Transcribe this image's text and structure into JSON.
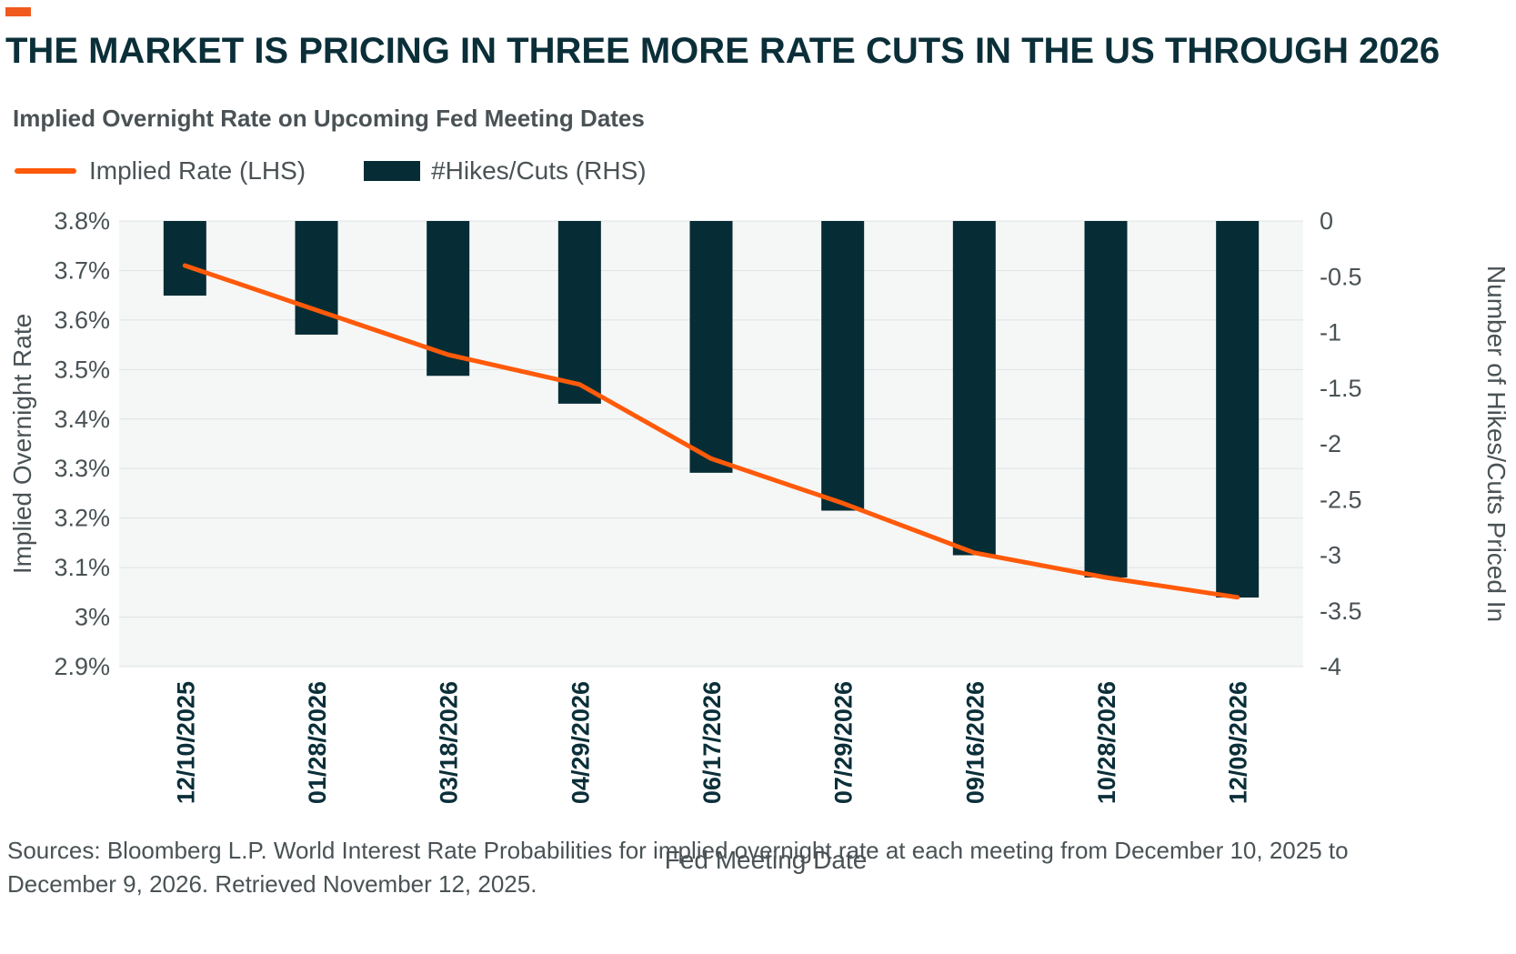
{
  "header": {
    "accent_color": "#f05a1f",
    "title": "THE MARKET IS PRICING IN THREE MORE RATE CUTS IN THE US THROUGH 2026",
    "subtitle": "Implied Overnight Rate on Upcoming Fed Meeting Dates"
  },
  "legend": {
    "line_label": "Implied Rate (LHS)",
    "bar_label": "#Hikes/Cuts (RHS)"
  },
  "chart_data": {
    "type": "bar",
    "title": "Implied Overnight Rate on Upcoming Fed Meeting Dates",
    "xlabel": "Fed Meeting Date",
    "ylabel": "Implied Overnight Rate",
    "y2label": "Number of Hikes/Cuts Priced In",
    "categories": [
      "12/10/2025",
      "01/28/2026",
      "03/18/2026",
      "04/29/2026",
      "06/17/2026",
      "07/29/2026",
      "09/16/2026",
      "10/28/2026",
      "12/09/2026"
    ],
    "ylim": [
      2.9,
      3.8
    ],
    "y_ticks": [
      "3.8%",
      "3.7%",
      "3.6%",
      "3.5%",
      "3.4%",
      "3.3%",
      "3.2%",
      "3.1%",
      "3%",
      "2.9%"
    ],
    "y_tick_values": [
      3.8,
      3.7,
      3.6,
      3.5,
      3.4,
      3.3,
      3.2,
      3.1,
      3.0,
      2.9
    ],
    "y2lim": [
      -4,
      0
    ],
    "y2_ticks": [
      "0",
      "-0.5",
      "-1",
      "-1.5",
      "-2",
      "-2.5",
      "-3",
      "-3.5",
      "-4"
    ],
    "y2_tick_values": [
      0,
      -0.5,
      -1,
      -1.5,
      -2,
      -2.5,
      -3,
      -3.5,
      -4
    ],
    "grid": true,
    "series": [
      {
        "name": "Implied Rate (LHS)",
        "type": "line",
        "axis": "left",
        "color": "#ff5a0a",
        "values": [
          3.71,
          3.62,
          3.53,
          3.47,
          3.32,
          3.23,
          3.13,
          3.08,
          3.04
        ]
      },
      {
        "name": "#Hikes/Cuts (RHS)",
        "type": "bar",
        "axis": "right",
        "color": "#062d35",
        "values": [
          -0.67,
          -1.02,
          -1.39,
          -1.64,
          -2.26,
          -2.6,
          -3.0,
          -3.2,
          -3.38
        ]
      }
    ]
  },
  "footer": {
    "source": "Sources: Bloomberg L.P. World Interest Rate Probabilities for implied overnight rate at each meeting from December 10, 2025 to December 9, 2026. Retrieved November 12, 2025."
  }
}
